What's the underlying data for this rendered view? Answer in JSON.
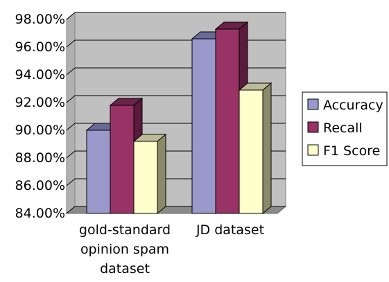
{
  "chart_data": {
    "type": "bar",
    "title": "",
    "xlabel": "",
    "ylabel": "",
    "categories": [
      [
        "gold-standard",
        "opinion spam",
        "dataset"
      ],
      [
        "JD dataset"
      ]
    ],
    "series": [
      {
        "name": "Accuracy",
        "values": [
          90.0,
          96.6
        ]
      },
      {
        "name": "Recall",
        "values": [
          91.8,
          97.3
        ]
      },
      {
        "name": "F1 Score",
        "values": [
          89.2,
          92.9
        ]
      }
    ],
    "ylim": [
      84,
      98
    ],
    "yticks": [
      "84.00%",
      "86.00%",
      "88.00%",
      "90.00%",
      "92.00%",
      "94.00%",
      "96.00%",
      "98.00%"
    ],
    "grid": true,
    "three_d": true,
    "legend_position": "right",
    "colors": {
      "series_front": [
        "#9999cc",
        "#993366",
        "#ffffcc"
      ],
      "series_side": [
        "#5e5e8a",
        "#5a1a3c",
        "#8a8a6a"
      ],
      "series_top": [
        "#6a6a99",
        "#6a2248",
        "#bcbc98"
      ],
      "wall": "#c0c0c0",
      "floor": "#8a8a8a",
      "grid": "#000000"
    }
  }
}
